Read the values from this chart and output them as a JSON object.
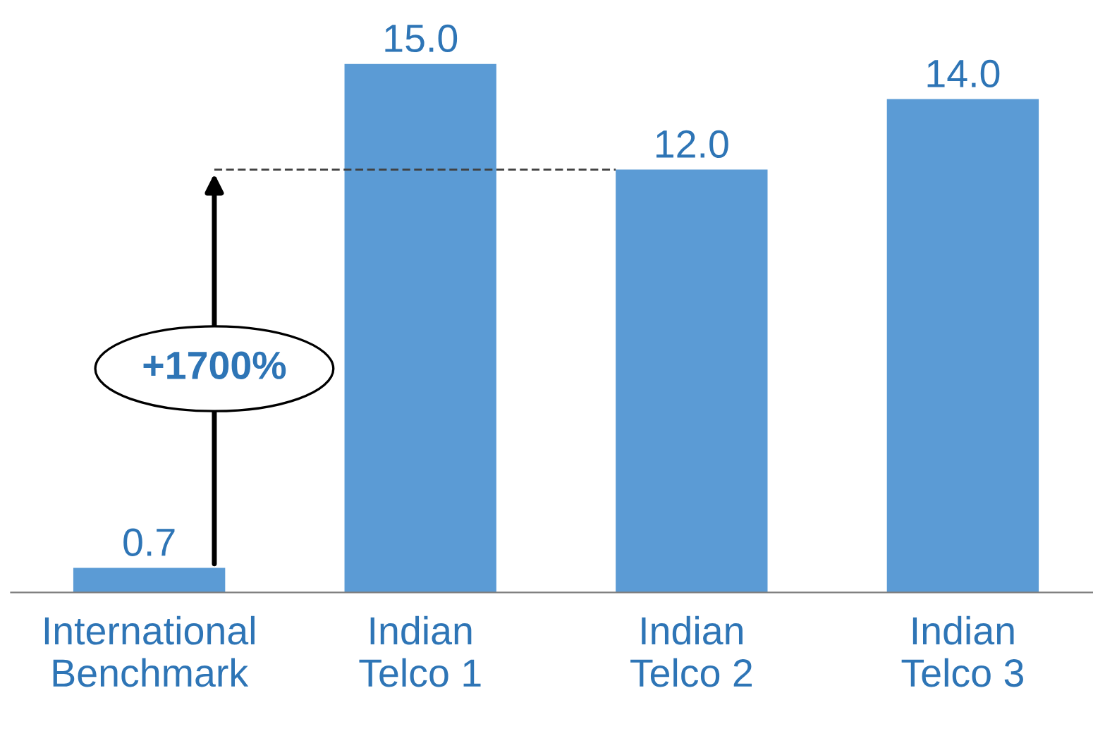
{
  "chart_data": {
    "type": "bar",
    "categories": [
      "International\nBenchmark",
      "Indian\nTelco 1",
      "Indian\nTelco 2",
      "Indian\nTelco 3"
    ],
    "values": [
      0.7,
      15.0,
      12.0,
      14.0
    ],
    "value_labels": [
      "0.7",
      "15.0",
      "12.0",
      "14.0"
    ],
    "color": "#5b9bd5",
    "ref_lines": [
      {
        "axis": "y",
        "value": 12.0,
        "line_style": "dashed",
        "color": "#404040"
      }
    ],
    "annotations": [
      "+1700%"
    ],
    "grid": false,
    "legend": false
  }
}
